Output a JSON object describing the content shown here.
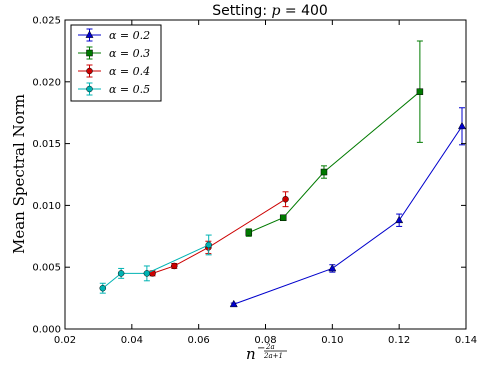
{
  "chart_data": {
    "type": "line",
    "title": "Setting: p = 400",
    "xlabel": "n^(-2a/(2a+1))",
    "ylabel": "Mean Spectral Norm",
    "xlim": [
      0.02,
      0.14
    ],
    "ylim": [
      0.0,
      0.025
    ],
    "x_ticks": [
      "0.02",
      "0.04",
      "0.06",
      "0.08",
      "0.10",
      "0.12",
      "0.14"
    ],
    "y_ticks": [
      "0.000",
      "0.005",
      "0.010",
      "0.015",
      "0.020",
      "0.025"
    ],
    "grid": false,
    "legend_position": "top-left",
    "series": [
      {
        "name": "α = 0.2",
        "color": "#0000cc",
        "marker": "triangle",
        "x": [
          0.0705,
          0.1,
          0.12,
          0.1388
        ],
        "y": [
          0.002,
          0.0049,
          0.0088,
          0.0164
        ],
        "err": [
          0.0001,
          0.0003,
          0.0005,
          0.0015
        ]
      },
      {
        "name": "α = 0.3",
        "color": "#007a00",
        "marker": "square",
        "x": [
          0.075,
          0.0853,
          0.0975,
          0.1262
        ],
        "y": [
          0.0078,
          0.009,
          0.0127,
          0.0192
        ],
        "err": [
          0.0003,
          0.0002,
          0.0005,
          0.0041
        ]
      },
      {
        "name": "α = 0.4",
        "color": "#cc0000",
        "marker": "circle",
        "x": [
          0.0462,
          0.0527,
          0.0629,
          0.086
        ],
        "y": [
          0.0045,
          0.0051,
          0.0066,
          0.0105
        ],
        "err": [
          0.0002,
          0.0002,
          0.0005,
          0.0006
        ]
      },
      {
        "name": "α = 0.5",
        "color": "#00b3b3",
        "marker": "circle",
        "x": [
          0.0313,
          0.0368,
          0.0445,
          0.063
        ],
        "y": [
          0.0033,
          0.0045,
          0.0045,
          0.0068
        ],
        "err": [
          0.0004,
          0.0004,
          0.0006,
          0.0008
        ]
      }
    ]
  }
}
